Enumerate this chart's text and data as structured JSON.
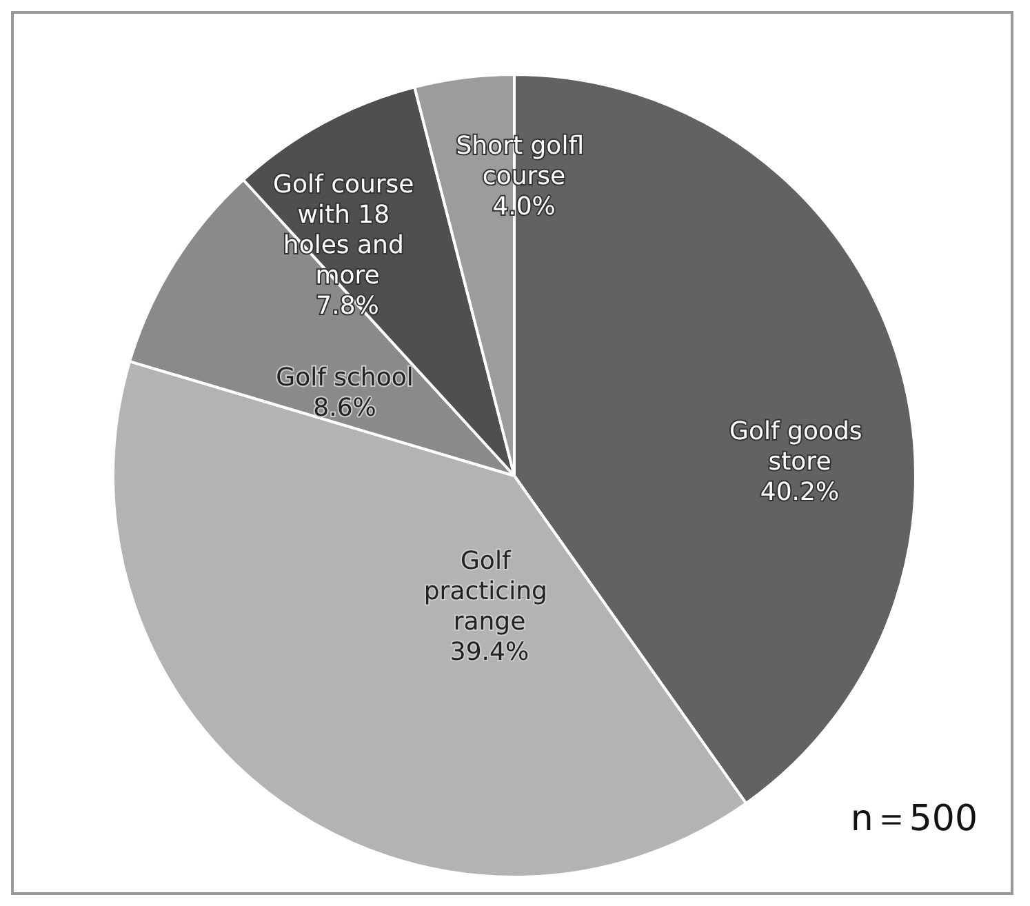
{
  "chart_data": {
    "type": "pie",
    "categories": [
      "Golf goods store",
      "Golf practicing range",
      "Golf school",
      "Golf course with 18 holes and more",
      "Short golfl course"
    ],
    "values": [
      40.2,
      39.4,
      8.6,
      7.8,
      4.0
    ],
    "value_labels": [
      "40.2%",
      "39.4%",
      "8.6%",
      "7.8%",
      "4.0%"
    ],
    "colors": [
      "#626262",
      "#b3b3b3",
      "#8a8a8a",
      "#4f4f4f",
      "#9c9c9c"
    ],
    "legend": false,
    "annotations": [
      "n＝500"
    ]
  }
}
